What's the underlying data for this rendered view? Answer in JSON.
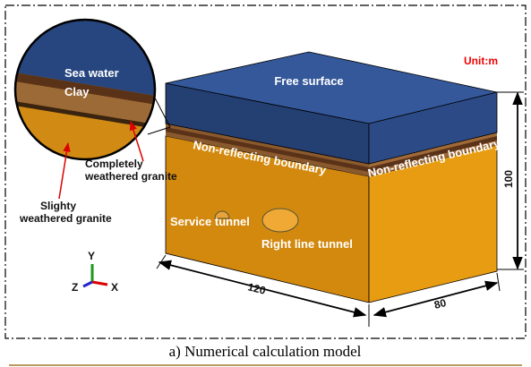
{
  "unit": "Unit:m",
  "model": {
    "top_face": "Free surface",
    "front_boundary": "Non-reflecting boundary",
    "side_boundary": "Non-reflecting boundary",
    "tunnels": [
      "Service tunnel",
      "Right line tunnel"
    ]
  },
  "inset": {
    "layers": [
      "Sea water",
      "Clay"
    ],
    "callouts": [
      [
        "Completely",
        "weathered granite"
      ],
      [
        "Slighty",
        "weathered granite"
      ]
    ]
  },
  "dimensions": {
    "length": 120,
    "width": 80,
    "height": 100
  },
  "axes": [
    "Y",
    "Z",
    "X"
  ],
  "caption": "a) Numerical calculation model"
}
